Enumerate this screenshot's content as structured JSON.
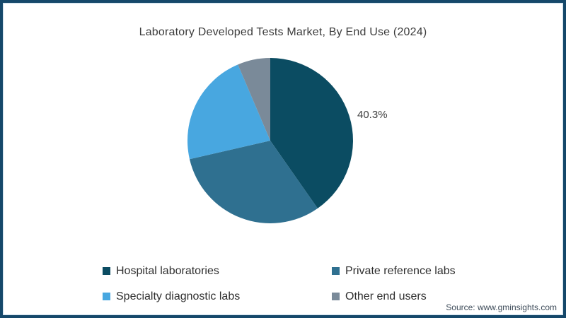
{
  "source_note": "Source: www.gminsights.com",
  "frame": {
    "border_color": "#15486a",
    "background": "#ffffff"
  },
  "chart_data": {
    "type": "pie",
    "title": "Laboratory Developed Tests Market, By End Use (2024)",
    "start_angle_deg": 0,
    "direction": "clockwise",
    "legend_position": "bottom",
    "slices": [
      {
        "label": "Hospital laboratories",
        "value": 40.3,
        "color": "#0b4c62",
        "data_label": "40.3%"
      },
      {
        "label": "Private reference labs",
        "value": 31.1,
        "color": "#2f7090",
        "data_label": ""
      },
      {
        "label": "Specialty diagnostic labs",
        "value": 22.2,
        "color": "#48a7e0",
        "data_label": ""
      },
      {
        "label": "Other end users",
        "value": 6.4,
        "color": "#7a8a99",
        "data_label": ""
      }
    ]
  }
}
